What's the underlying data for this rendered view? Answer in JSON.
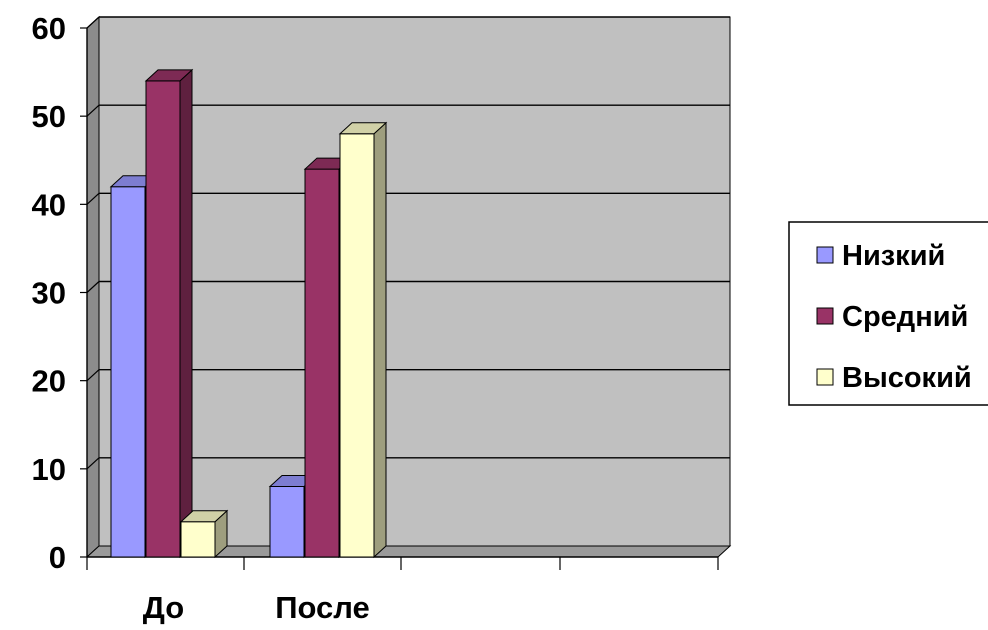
{
  "chart_data": {
    "type": "bar",
    "title": "",
    "xlabel": "",
    "ylabel": "",
    "categories": [
      "До",
      "После"
    ],
    "series": [
      {
        "name": "Низкий",
        "values": [
          42,
          8
        ],
        "color": "#9999ff"
      },
      {
        "name": "Средний",
        "values": [
          54,
          44
        ],
        "color": "#993366"
      },
      {
        "name": "Высокий",
        "values": [
          4,
          48
        ],
        "color": "#ffffcc"
      }
    ],
    "ylim": [
      0,
      60
    ],
    "yticks": [
      "0",
      "10",
      "20",
      "30",
      "40",
      "50",
      "60"
    ],
    "grid": true,
    "three_d": true,
    "plot_background": "#c0c0c0",
    "legend_position": "right"
  }
}
